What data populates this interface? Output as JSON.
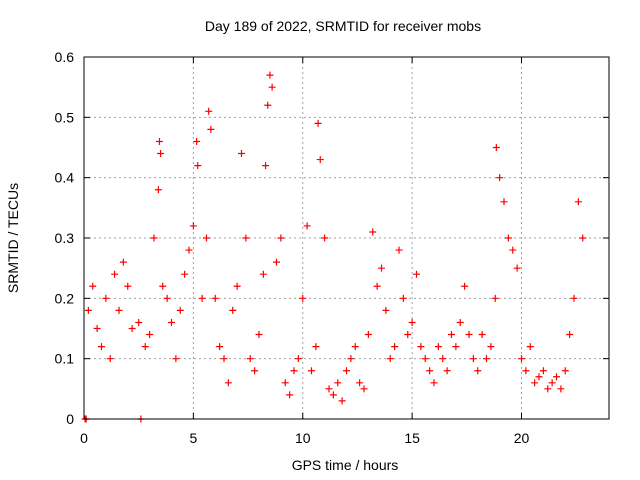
{
  "chart_data": {
    "type": "scatter",
    "title": "Day 189 of 2022, SRMTID for receiver mobs",
    "xlabel": "GPS time / hours",
    "ylabel": "SRMTID / TECUs",
    "xlim": [
      0,
      24
    ],
    "ylim": [
      0,
      0.6
    ],
    "x_ticks": [
      0,
      5,
      10,
      15,
      20
    ],
    "x_tick_labels": [
      "0",
      "5",
      "10",
      "15",
      "20"
    ],
    "y_ticks": [
      0,
      0.1,
      0.2,
      0.3,
      0.4,
      0.5,
      0.6
    ],
    "y_tick_labels": [
      "0",
      "0.1",
      "0.2",
      "0.3",
      "0.4",
      "0.5",
      "0.6"
    ],
    "grid": true,
    "marker": "plus",
    "color": "#ff0000",
    "series": [
      {
        "name": "SRMTID",
        "x": [
          0.05,
          0.1,
          2.6,
          0.2,
          0.4,
          0.6,
          0.8,
          1.0,
          1.2,
          1.4,
          1.6,
          1.8,
          2.0,
          2.2,
          2.5,
          2.8,
          3.0,
          3.2,
          3.4,
          3.45,
          3.5,
          3.6,
          3.8,
          4.0,
          4.2,
          4.4,
          4.6,
          4.8,
          5.0,
          5.15,
          5.2,
          5.4,
          5.6,
          5.7,
          5.8,
          6.0,
          6.2,
          6.4,
          6.6,
          6.8,
          7.0,
          7.2,
          7.4,
          7.6,
          7.8,
          8.0,
          8.2,
          8.3,
          8.4,
          8.5,
          8.6,
          8.8,
          9.0,
          9.2,
          9.4,
          9.6,
          9.8,
          10.0,
          10.2,
          10.4,
          10.6,
          10.7,
          10.8,
          11.0,
          11.2,
          11.4,
          11.6,
          11.8,
          12.0,
          12.2,
          12.4,
          12.6,
          12.8,
          13.0,
          13.2,
          13.4,
          13.6,
          13.8,
          14.0,
          14.2,
          14.4,
          14.6,
          14.8,
          15.0,
          15.2,
          15.4,
          15.6,
          15.8,
          16.0,
          16.2,
          16.4,
          16.6,
          16.8,
          17.0,
          17.2,
          17.4,
          17.6,
          17.8,
          18.0,
          18.2,
          18.4,
          18.6,
          18.8,
          18.85,
          19.0,
          19.2,
          19.4,
          19.6,
          19.8,
          20.0,
          20.2,
          20.4,
          20.6,
          20.8,
          21.0,
          21.2,
          21.4,
          21.6,
          21.8,
          22.0,
          22.2,
          22.4,
          22.6,
          22.8
        ],
        "y": [
          0.0,
          0.0,
          0.0,
          0.18,
          0.22,
          0.15,
          0.12,
          0.2,
          0.1,
          0.24,
          0.18,
          0.26,
          0.22,
          0.15,
          0.16,
          0.12,
          0.14,
          0.3,
          0.38,
          0.46,
          0.44,
          0.22,
          0.2,
          0.16,
          0.1,
          0.18,
          0.24,
          0.28,
          0.32,
          0.46,
          0.42,
          0.2,
          0.3,
          0.51,
          0.48,
          0.2,
          0.12,
          0.1,
          0.06,
          0.18,
          0.22,
          0.44,
          0.3,
          0.1,
          0.08,
          0.14,
          0.24,
          0.42,
          0.52,
          0.57,
          0.55,
          0.26,
          0.3,
          0.06,
          0.04,
          0.08,
          0.1,
          0.2,
          0.32,
          0.08,
          0.12,
          0.49,
          0.43,
          0.3,
          0.05,
          0.04,
          0.06,
          0.03,
          0.08,
          0.1,
          0.12,
          0.06,
          0.05,
          0.14,
          0.31,
          0.22,
          0.25,
          0.18,
          0.1,
          0.12,
          0.28,
          0.2,
          0.14,
          0.16,
          0.24,
          0.12,
          0.1,
          0.08,
          0.06,
          0.12,
          0.1,
          0.08,
          0.14,
          0.12,
          0.16,
          0.22,
          0.14,
          0.1,
          0.08,
          0.14,
          0.1,
          0.12,
          0.2,
          0.45,
          0.4,
          0.36,
          0.3,
          0.28,
          0.25,
          0.1,
          0.08,
          0.12,
          0.06,
          0.07,
          0.08,
          0.05,
          0.06,
          0.07,
          0.05,
          0.08,
          0.14,
          0.2,
          0.36,
          0.3
        ]
      }
    ]
  }
}
